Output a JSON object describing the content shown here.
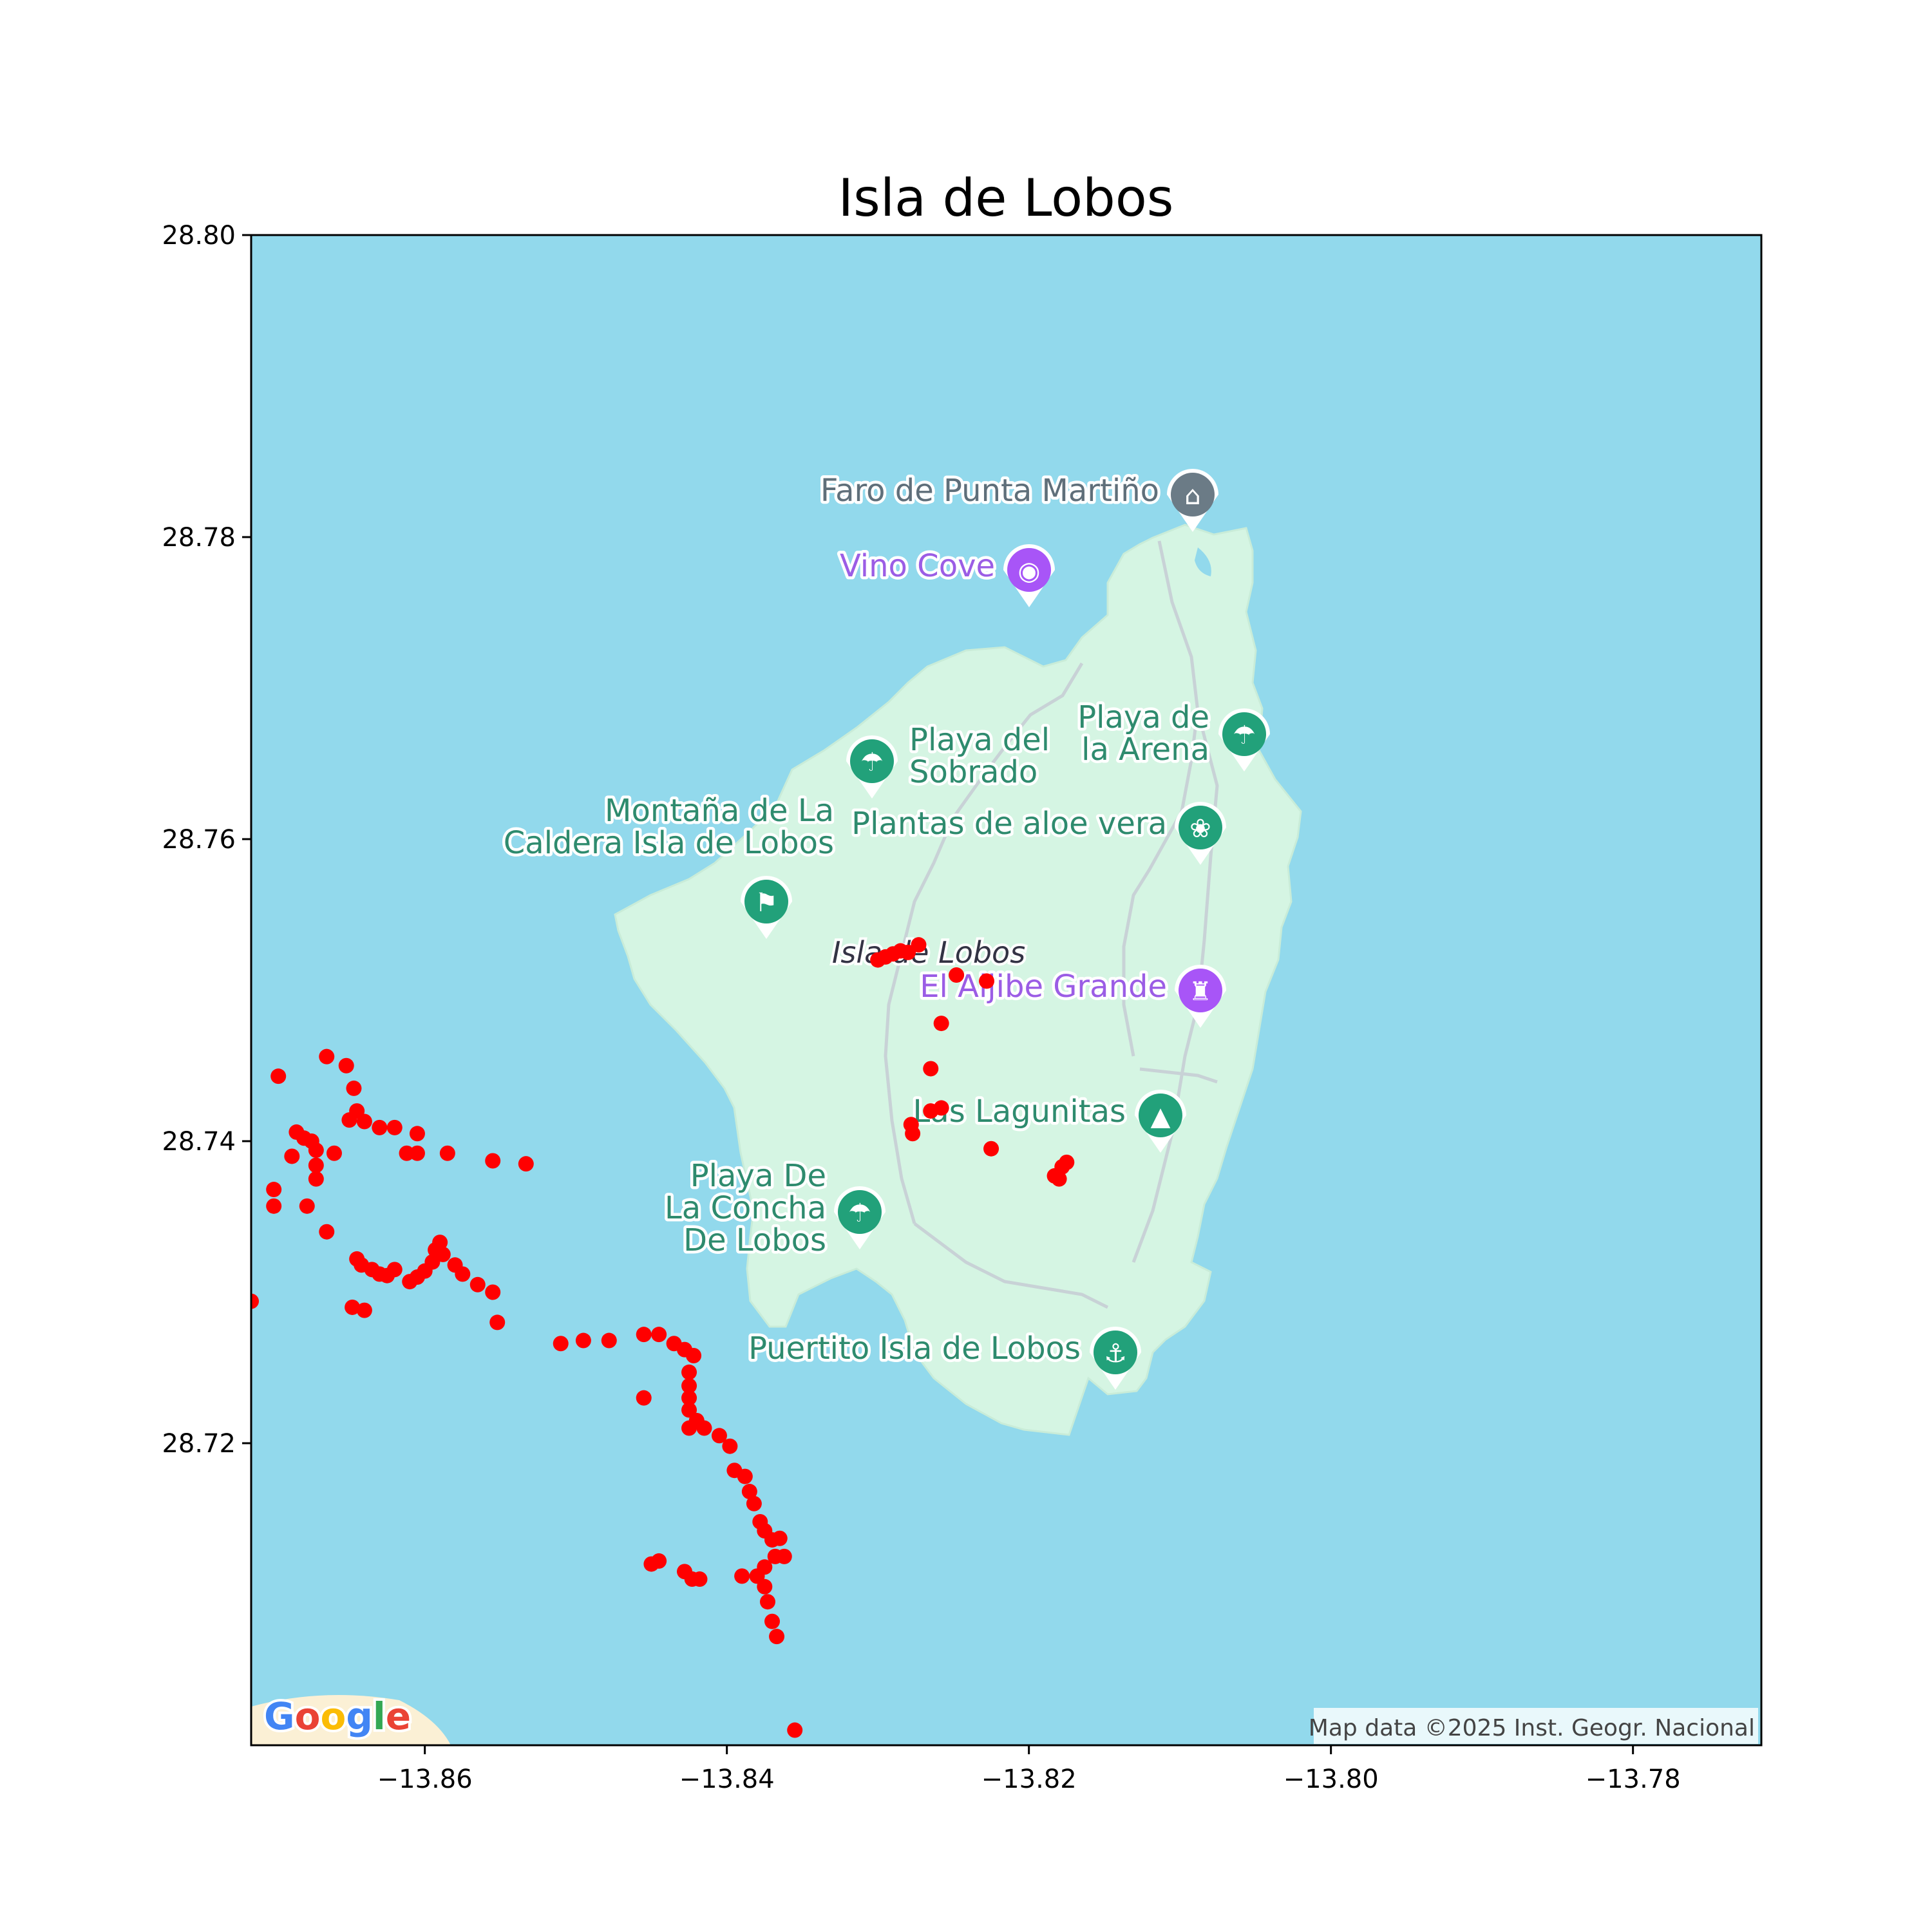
{
  "chart": {
    "title": "Isla de Lobos",
    "attribution": "Map data ©2025 Inst. Geogr. Nacional",
    "logo_text": "Google",
    "island_label": "Isla de Lobos",
    "colors": {
      "water": "#92d9ec",
      "land": "#d5f5e3",
      "points": "#ff0000",
      "green_poi": "#22a17a",
      "purple_poi": "#a855f7",
      "gray_poi": "#6b7b86"
    }
  },
  "pois": [
    {
      "name": "Faro de Punta Martiño",
      "icon": "monument-icon",
      "color": "gray"
    },
    {
      "name": "Vino Cove",
      "icon": "camera-icon",
      "color": "purple"
    },
    {
      "name": "Playa de la Arena",
      "lines": [
        "Playa de",
        "la Arena"
      ],
      "icon": "beach-umbrella-icon",
      "color": "green"
    },
    {
      "name": "Playa del Sobrado",
      "lines": [
        "Playa del",
        "Sobrado"
      ],
      "icon": "beach-umbrella-icon",
      "color": "green"
    },
    {
      "name": "Montaña de La Caldera Isla de Lobos",
      "lines": [
        "Montaña de La",
        "Caldera Isla de Lobos"
      ],
      "icon": "hiking-icon",
      "color": "green"
    },
    {
      "name": "Plantas de aloe vera",
      "icon": "flower-icon",
      "color": "green"
    },
    {
      "name": "El Aljibe Grande",
      "icon": "castle-icon",
      "color": "purple"
    },
    {
      "name": "Las Lagunitas",
      "icon": "tree-icon",
      "color": "green"
    },
    {
      "name": "Playa De La Concha De Lobos",
      "lines": [
        "Playa De",
        "La Concha",
        "De Lobos"
      ],
      "icon": "beach-umbrella-icon",
      "color": "green"
    },
    {
      "name": "Puertito Isla de Lobos",
      "icon": "ferry-icon",
      "color": "green"
    }
  ],
  "chart_data": {
    "type": "scatter",
    "title": "Isla de Lobos",
    "xlabel": "",
    "ylabel": "",
    "xlim": [
      -13.8715,
      -13.7715
    ],
    "ylim": [
      28.7,
      28.8
    ],
    "xticks": [
      -13.86,
      -13.84,
      -13.82,
      -13.8,
      -13.78
    ],
    "xtick_labels": [
      "−13.86",
      "−13.84",
      "−13.82",
      "−13.80",
      "−13.78"
    ],
    "yticks": [
      28.72,
      28.74,
      28.76,
      28.78,
      28.8
    ],
    "ytick_labels": [
      "28.72",
      "28.74",
      "28.76",
      "28.78",
      "28.80"
    ],
    "grid": false,
    "series": [
      {
        "color": "#ff0000",
        "points": [
          [
            -13.83,
            28.752
          ],
          [
            -13.8295,
            28.7522
          ],
          [
            -13.829,
            28.7524
          ],
          [
            -13.8285,
            28.7526
          ],
          [
            -13.828,
            28.7525
          ],
          [
            -13.8273,
            28.753
          ],
          [
            -13.8248,
            28.751
          ],
          [
            -13.8228,
            28.7506
          ],
          [
            -13.8258,
            28.7478
          ],
          [
            -13.8265,
            28.7448
          ],
          [
            -13.8265,
            28.742
          ],
          [
            -13.8258,
            28.7422
          ],
          [
            -13.8278,
            28.7411
          ],
          [
            -13.8277,
            28.7405
          ],
          [
            -13.8225,
            28.7395
          ],
          [
            -13.8183,
            28.7377
          ],
          [
            -13.8178,
            28.7383
          ],
          [
            -13.8175,
            28.7386
          ],
          [
            -13.818,
            28.7375
          ],
          [
            -13.8697,
            28.7443
          ],
          [
            -13.8665,
            28.7456
          ],
          [
            -13.8652,
            28.745
          ],
          [
            -13.8647,
            28.7435
          ],
          [
            -13.8645,
            28.742
          ],
          [
            -13.865,
            28.7414
          ],
          [
            -13.864,
            28.7413
          ],
          [
            -13.863,
            28.7409
          ],
          [
            -13.862,
            28.7409
          ],
          [
            -13.8605,
            28.7405
          ],
          [
            -13.8612,
            28.7392
          ],
          [
            -13.8605,
            28.7392
          ],
          [
            -13.8585,
            28.7392
          ],
          [
            -13.8555,
            28.7387
          ],
          [
            -13.8533,
            28.7385
          ],
          [
            -13.8685,
            28.7406
          ],
          [
            -13.868,
            28.7402
          ],
          [
            -13.8675,
            28.74
          ],
          [
            -13.8672,
            28.7394
          ],
          [
            -13.8688,
            28.739
          ],
          [
            -13.866,
            28.7392
          ],
          [
            -13.8672,
            28.7384
          ],
          [
            -13.8672,
            28.7375
          ],
          [
            -13.87,
            28.7368
          ],
          [
            -13.87,
            28.7357
          ],
          [
            -13.8678,
            28.7357
          ],
          [
            -13.8665,
            28.734
          ],
          [
            -13.8645,
            28.7322
          ],
          [
            -13.8642,
            28.7318
          ],
          [
            -13.8635,
            28.7315
          ],
          [
            -13.863,
            28.7312
          ],
          [
            -13.8625,
            28.7311
          ],
          [
            -13.862,
            28.7315
          ],
          [
            -13.861,
            28.7307
          ],
          [
            -13.8605,
            28.731
          ],
          [
            -13.86,
            28.7314
          ],
          [
            -13.8595,
            28.732
          ],
          [
            -13.8593,
            28.7328
          ],
          [
            -13.859,
            28.7333
          ],
          [
            -13.8588,
            28.7325
          ],
          [
            -13.858,
            28.7318
          ],
          [
            -13.8575,
            28.7312
          ],
          [
            -13.8565,
            28.7305
          ],
          [
            -13.8555,
            28.73
          ],
          [
            -13.8648,
            28.729
          ],
          [
            -13.864,
            28.7288
          ],
          [
            -13.8552,
            28.728
          ],
          [
            -13.8715,
            28.7294
          ],
          [
            -13.851,
            28.7266
          ],
          [
            -13.8495,
            28.7268
          ],
          [
            -13.8478,
            28.7268
          ],
          [
            -13.8455,
            28.7272
          ],
          [
            -13.8445,
            28.7272
          ],
          [
            -13.8435,
            28.7266
          ],
          [
            -13.8428,
            28.7262
          ],
          [
            -13.8422,
            28.7258
          ],
          [
            -13.8425,
            28.7247
          ],
          [
            -13.8425,
            28.7238
          ],
          [
            -13.8425,
            28.723
          ],
          [
            -13.8425,
            28.7222
          ],
          [
            -13.842,
            28.7215
          ],
          [
            -13.8415,
            28.721
          ],
          [
            -13.8425,
            28.721
          ],
          [
            -13.8405,
            28.7205
          ],
          [
            -13.8398,
            28.7198
          ],
          [
            -13.8395,
            28.7182
          ],
          [
            -13.8388,
            28.7178
          ],
          [
            -13.8385,
            28.7168
          ],
          [
            -13.8382,
            28.716
          ],
          [
            -13.8378,
            28.7148
          ],
          [
            -13.8375,
            28.7142
          ],
          [
            -13.837,
            28.7136
          ],
          [
            -13.8365,
            28.7137
          ],
          [
            -13.8368,
            28.7125
          ],
          [
            -13.8375,
            28.7118
          ],
          [
            -13.838,
            28.7112
          ],
          [
            -13.8375,
            28.7105
          ],
          [
            -13.8373,
            28.7095
          ],
          [
            -13.837,
            28.7082
          ],
          [
            -13.8367,
            28.7072
          ],
          [
            -13.8362,
            28.7125
          ],
          [
            -13.839,
            28.7112
          ],
          [
            -13.8418,
            28.711
          ],
          [
            -13.8423,
            28.711
          ],
          [
            -13.8428,
            28.7115
          ],
          [
            -13.8445,
            28.7122
          ],
          [
            -13.845,
            28.712
          ],
          [
            -13.8455,
            28.723
          ],
          [
            -13.8355,
            28.701
          ]
        ]
      }
    ]
  }
}
